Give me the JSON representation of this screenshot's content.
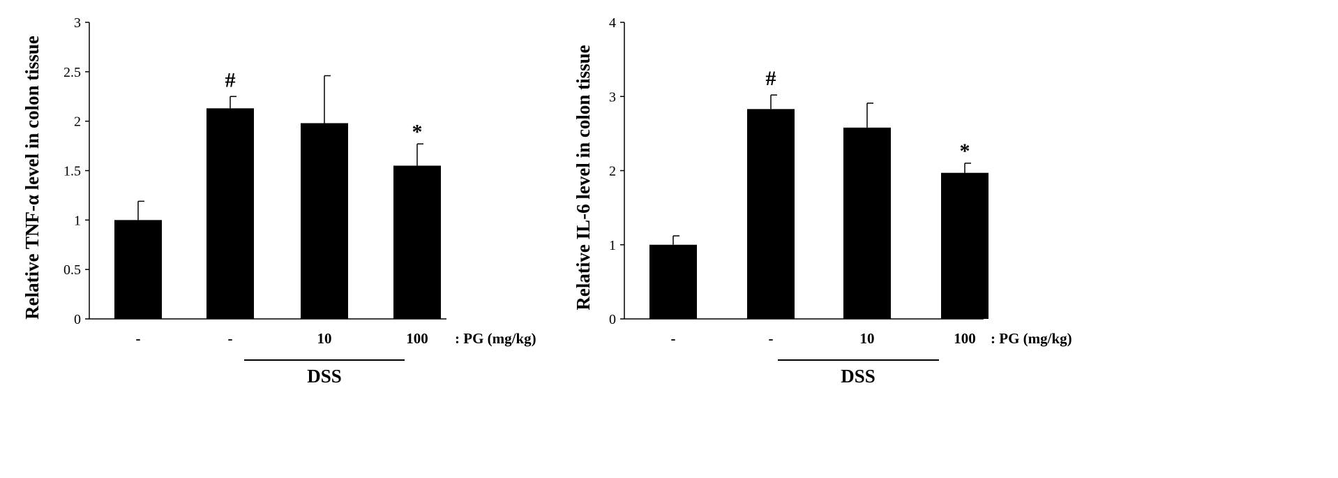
{
  "chart_data": [
    {
      "type": "bar",
      "ylabel": "Relative TNF-α level in colon tissue",
      "xlabel": ": PG (mg/kg)",
      "categories": [
        "-",
        "-",
        "10",
        "100"
      ],
      "values": [
        1.0,
        2.13,
        1.98,
        1.55
      ],
      "errors": [
        0.19,
        0.12,
        0.48,
        0.22
      ],
      "annotations": [
        "",
        "#",
        "",
        "*"
      ],
      "ylim": [
        0,
        3
      ],
      "yticks": [
        "0",
        "0.5",
        "1",
        "1.5",
        "2",
        "2.5",
        "3"
      ],
      "ytick_values": [
        0,
        0.5,
        1,
        1.5,
        2,
        2.5,
        3
      ],
      "group_label": "DSS",
      "group_categories": [
        1,
        3
      ],
      "grid": false,
      "bar_color": "#000000"
    },
    {
      "type": "bar",
      "ylabel": "Relative IL-6 level in colon tissue",
      "xlabel": ": PG (mg/kg)",
      "categories": [
        "-",
        "-",
        "10",
        "100"
      ],
      "values": [
        1.0,
        2.83,
        2.58,
        1.97
      ],
      "errors": [
        0.12,
        0.19,
        0.33,
        0.13
      ],
      "annotations": [
        "",
        "#",
        "",
        "*"
      ],
      "ylim": [
        0,
        4
      ],
      "yticks": [
        "0",
        "1",
        "2",
        "3",
        "4"
      ],
      "ytick_values": [
        0,
        1,
        2,
        3,
        4
      ],
      "group_label": "DSS",
      "group_categories": [
        1,
        3
      ],
      "grid": false,
      "bar_color": "#000000"
    }
  ]
}
